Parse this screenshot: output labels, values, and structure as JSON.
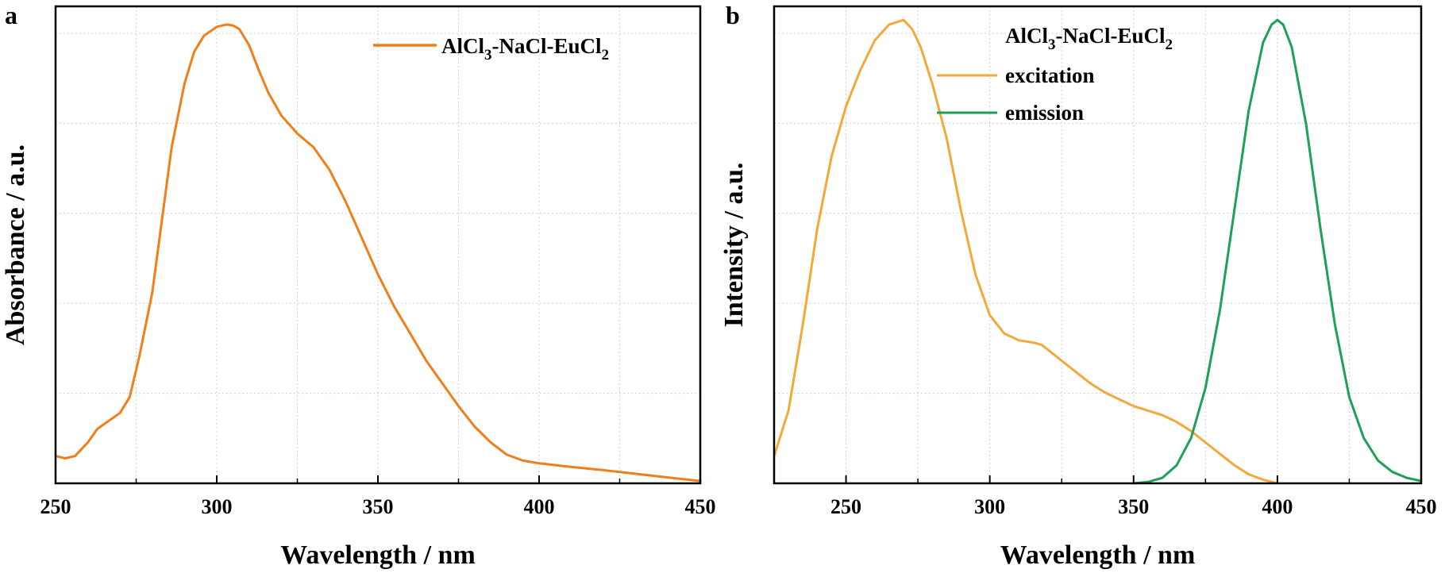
{
  "chart_data": [
    {
      "type": "line",
      "panel_label": "a",
      "xlabel": "Wavelength / nm",
      "ylabel": "Absorbance / a.u.",
      "xlim": [
        250,
        450
      ],
      "ylim": [
        0,
        1.05
      ],
      "xticks": [
        250,
        300,
        350,
        400,
        450
      ],
      "xtick_labels": [
        "250",
        "300",
        "350",
        "400",
        "450"
      ],
      "grid": true,
      "legend_position": "top-right",
      "legend": {
        "base": "AlCl",
        "sub1": "3",
        "mid": "-NaCl-EuCl",
        "sub2": "2"
      },
      "colors": {
        "line": "#F07F1A",
        "grid": "#D0D0D0"
      },
      "series": [
        {
          "x": [
            250,
            253,
            256,
            260,
            263,
            266,
            270,
            273,
            276,
            280,
            283,
            286,
            290,
            293,
            296,
            300,
            303,
            305,
            307,
            310,
            313,
            316,
            320,
            325,
            330,
            335,
            340,
            345,
            350,
            355,
            360,
            365,
            370,
            375,
            380,
            385,
            390,
            395,
            400,
            410,
            420,
            430,
            440,
            450
          ],
          "y": [
            0.06,
            0.055,
            0.06,
            0.09,
            0.12,
            0.135,
            0.155,
            0.19,
            0.28,
            0.42,
            0.58,
            0.74,
            0.88,
            0.95,
            0.985,
            1.005,
            1.01,
            1.008,
            1.0,
            0.965,
            0.91,
            0.86,
            0.81,
            0.77,
            0.74,
            0.69,
            0.62,
            0.54,
            0.46,
            0.39,
            0.33,
            0.27,
            0.22,
            0.17,
            0.125,
            0.09,
            0.063,
            0.05,
            0.044,
            0.036,
            0.029,
            0.021,
            0.013,
            0.005
          ]
        }
      ]
    },
    {
      "type": "line",
      "panel_label": "b",
      "xlabel": "Wavelength / nm",
      "ylabel": "Intensity / a.u.",
      "xlim": [
        225,
        450
      ],
      "ylim": [
        0,
        1.05
      ],
      "xticks": [
        250,
        300,
        350,
        400,
        450
      ],
      "xtick_labels": [
        "250",
        "300",
        "350",
        "400",
        "450"
      ],
      "grid": true,
      "legend_position": "top-right",
      "legend_title": {
        "base": "AlCl",
        "sub1": "3",
        "mid": "-NaCl-EuCl",
        "sub2": "2"
      },
      "colors": {
        "grid": "#D0D0D0"
      },
      "series": [
        {
          "name": "excitation",
          "color": "#F2A83A",
          "x": [
            225,
            230,
            235,
            240,
            245,
            250,
            255,
            260,
            265,
            270,
            273,
            276,
            280,
            285,
            290,
            295,
            300,
            305,
            310,
            315,
            318,
            320,
            325,
            330,
            335,
            340,
            345,
            350,
            355,
            360,
            365,
            370,
            375,
            380,
            385,
            390,
            395,
            400
          ],
          "y": [
            0.06,
            0.16,
            0.35,
            0.56,
            0.72,
            0.83,
            0.91,
            0.975,
            1.01,
            1.02,
            1.0,
            0.96,
            0.88,
            0.76,
            0.6,
            0.46,
            0.37,
            0.33,
            0.315,
            0.31,
            0.305,
            0.295,
            0.27,
            0.245,
            0.22,
            0.2,
            0.185,
            0.17,
            0.16,
            0.15,
            0.135,
            0.115,
            0.09,
            0.065,
            0.04,
            0.02,
            0.008,
            0.0
          ]
        },
        {
          "name": "emission",
          "color": "#1FA05A",
          "x": [
            350,
            355,
            360,
            365,
            370,
            375,
            380,
            385,
            390,
            395,
            398,
            400,
            402,
            405,
            410,
            415,
            420,
            425,
            430,
            435,
            440,
            445,
            450
          ],
          "y": [
            0.0,
            0.003,
            0.012,
            0.04,
            0.1,
            0.21,
            0.38,
            0.6,
            0.82,
            0.97,
            1.01,
            1.02,
            1.01,
            0.96,
            0.79,
            0.56,
            0.35,
            0.19,
            0.1,
            0.05,
            0.025,
            0.012,
            0.005
          ]
        }
      ]
    }
  ]
}
